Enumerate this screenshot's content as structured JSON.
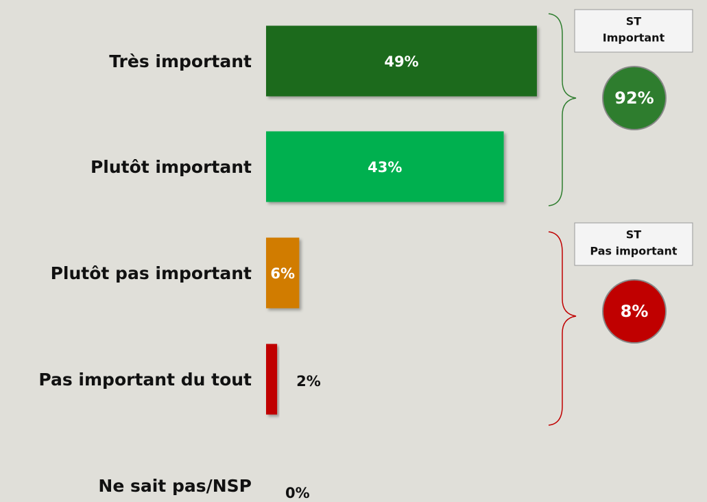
{
  "chart_data": {
    "type": "bar",
    "orientation": "horizontal",
    "categories": [
      "Très important",
      "Plutôt important",
      "Plutôt pas important",
      "Pas important du tout",
      "Ne sait pas/NSP"
    ],
    "values": [
      49,
      43,
      6,
      2,
      0
    ],
    "value_labels": [
      "49%",
      "43%",
      "6%",
      "2%",
      "0%"
    ],
    "colors": [
      "#1f6b1f",
      "#00b050",
      "#d17b00",
      "#c00000",
      "#c00000"
    ],
    "summaries": [
      {
        "title": [
          "ST",
          "Important"
        ],
        "value": 92,
        "value_label": "92%",
        "color": "#2e7d2e"
      },
      {
        "title": [
          "ST",
          "Pas important"
        ],
        "value": 8,
        "value_label": "8%",
        "color": "#c00000"
      }
    ]
  }
}
